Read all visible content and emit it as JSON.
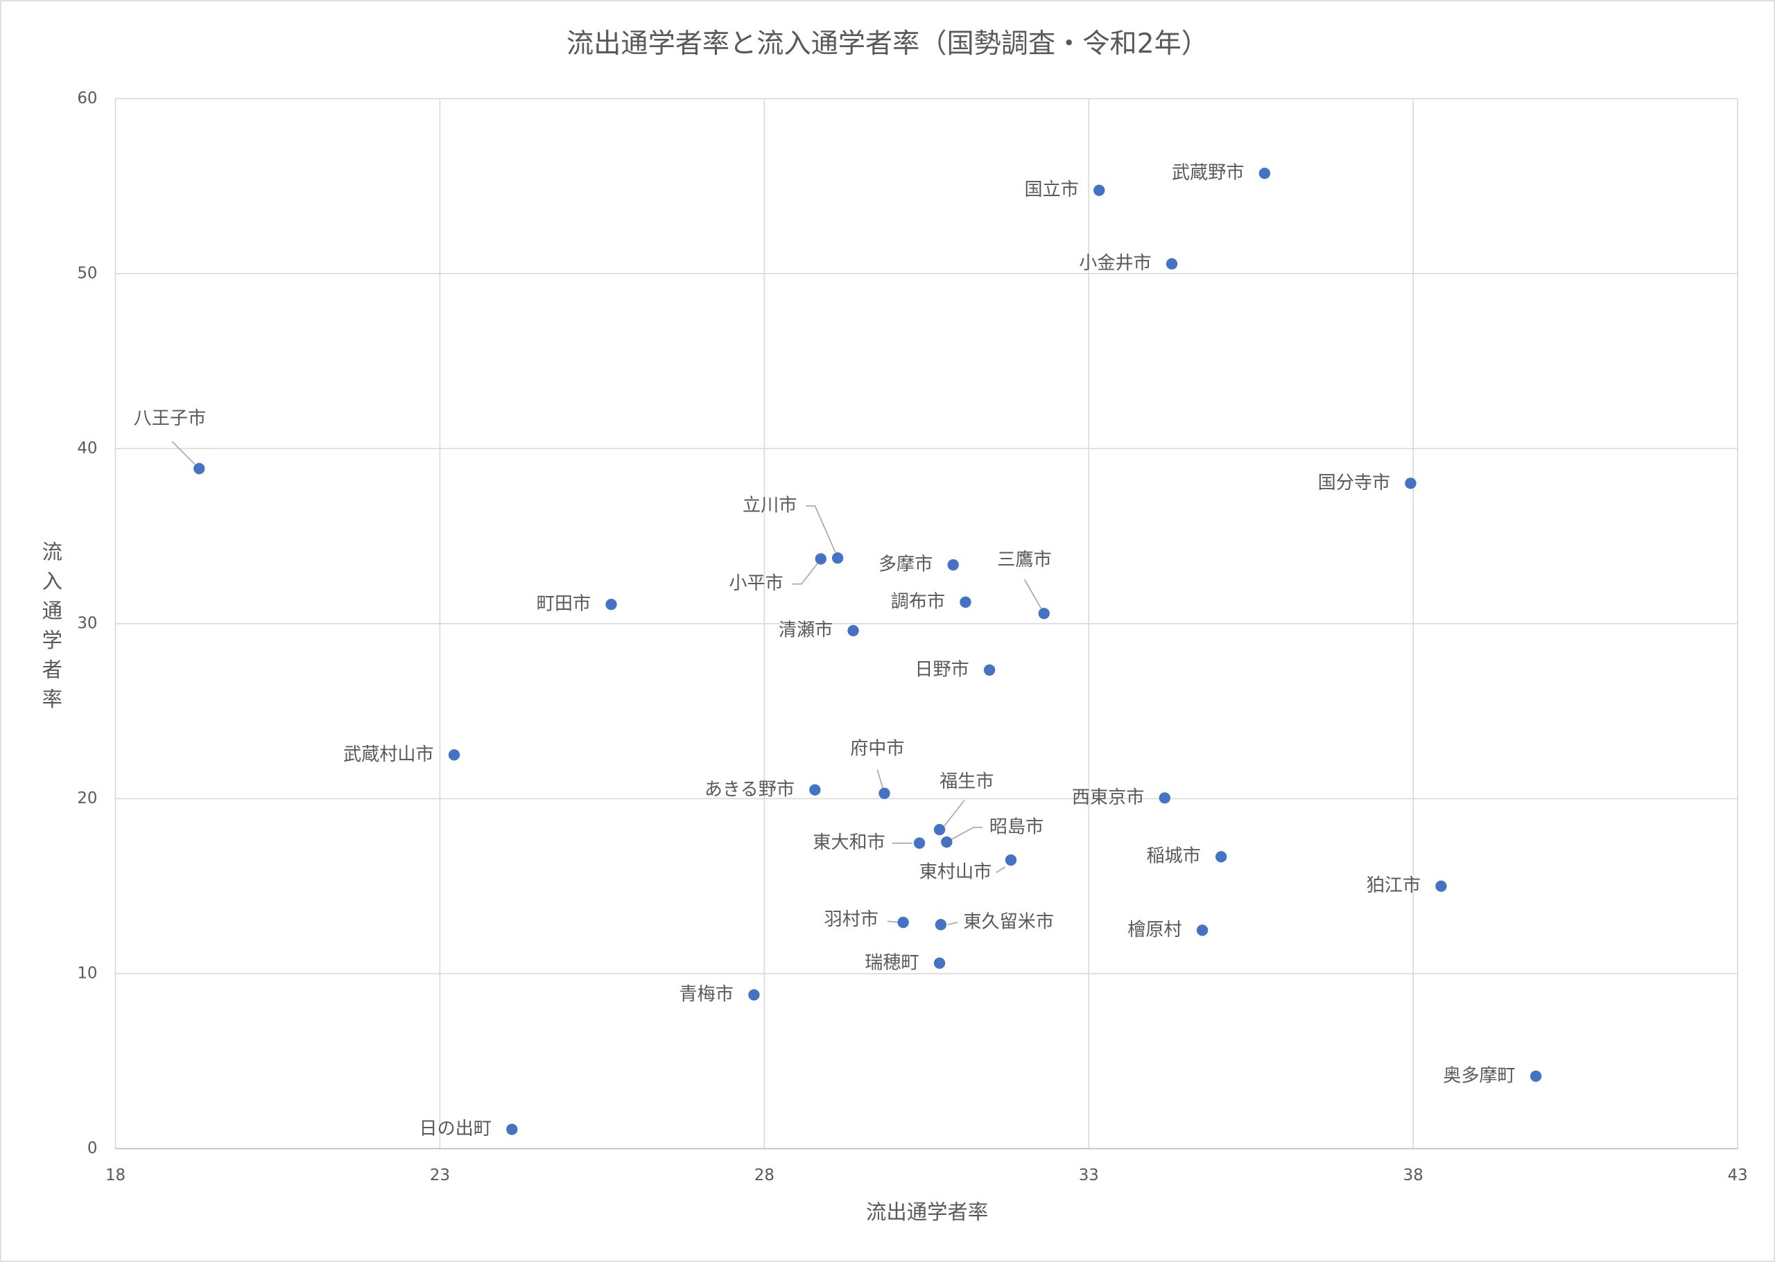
{
  "chart_data": {
    "type": "scatter",
    "title": "流出通学者率と流入通学者率（国勢調査・令和2年）",
    "x_label": "流出通学者率",
    "y_label": "流入通学者率",
    "labels": [
      "八王子市",
      "日の出町",
      "武蔵村山市",
      "町田市",
      "青梅市",
      "あきる野市",
      "小平市",
      "立川市",
      "清瀬市",
      "府中市",
      "羽村市",
      "東大和市",
      "瑞穂町",
      "福生市",
      "東久留米市",
      "昭島市",
      "多摩市",
      "調布市",
      "日野市",
      "東村山市",
      "三鷹市",
      "国立市",
      "西東京市",
      "小金井市",
      "檜原村",
      "稲城市",
      "武蔵野市",
      "国分寺市",
      "狛江市",
      "奥多摩町"
    ],
    "x": [
      19.29,
      24.11,
      23.22,
      25.64,
      27.84,
      28.78,
      28.87,
      29.13,
      29.37,
      29.85,
      30.14,
      30.39,
      30.7,
      30.7,
      30.72,
      30.81,
      30.91,
      31.1,
      31.47,
      31.8,
      32.31,
      33.16,
      34.17,
      34.28,
      34.75,
      35.04,
      35.71,
      37.96,
      38.43,
      39.89
    ],
    "y": [
      38.86,
      1.1,
      22.5,
      31.1,
      8.79,
      20.5,
      33.7,
      33.75,
      29.6,
      20.3,
      12.93,
      17.46,
      10.6,
      18.23,
      12.8,
      17.52,
      33.36,
      31.23,
      27.35,
      16.49,
      30.58,
      54.76,
      20.04,
      50.56,
      12.48,
      16.68,
      55.73,
      38.02,
      15.0,
      4.14
    ],
    "color": "#4472c4",
    "xlim": [
      18,
      43
    ],
    "xticks": [
      18,
      23,
      28,
      33,
      38,
      43
    ],
    "ylim": [
      0,
      60
    ],
    "yticks": [
      0,
      10,
      20,
      30,
      40,
      50,
      60
    ],
    "grid": true
  }
}
